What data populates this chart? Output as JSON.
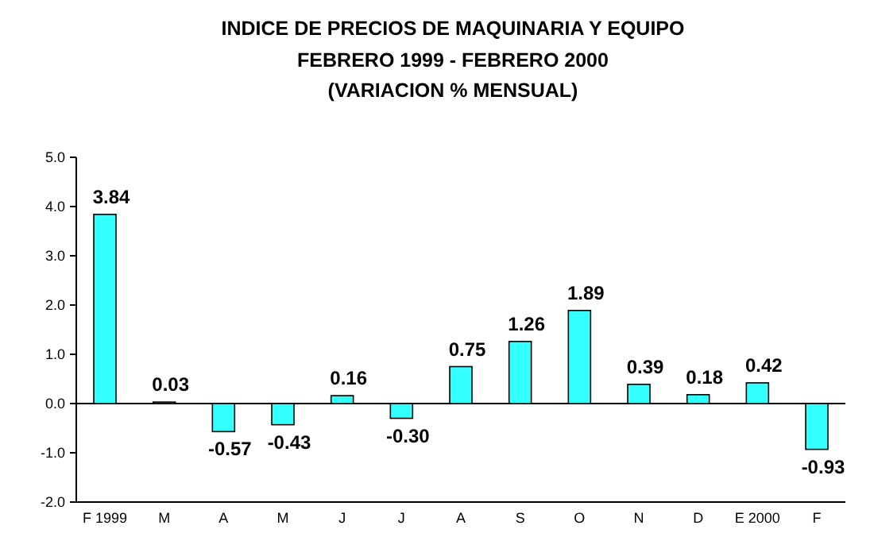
{
  "chart_data": {
    "type": "bar",
    "title": "INDICE DE PRECIOS DE MAQUINARIA Y EQUIPO",
    "subtitle": "FEBRERO 1999 - FEBRERO 2000\n(VARIACION % MENSUAL)",
    "categories": [
      "F 1999",
      "M",
      "A",
      "M",
      "J",
      "J",
      "A",
      "S",
      "O",
      "N",
      "D",
      "E 2000",
      "F"
    ],
    "values": [
      3.84,
      0.03,
      -0.57,
      -0.43,
      0.16,
      -0.3,
      0.75,
      1.26,
      1.89,
      0.39,
      0.18,
      0.42,
      -0.93
    ],
    "color": "#33ffff",
    "value_labels": [
      "3.84",
      "0.03",
      "-0.57",
      "-0.43",
      "0.16",
      "-0.30",
      "0.75",
      "1.26",
      "1.89",
      "0.39",
      "0.18",
      "0.42",
      "-0.93"
    ],
    "ylim": [
      -2,
      5
    ],
    "yticks": [
      {
        "value": -2,
        "label": "-2.0"
      },
      {
        "value": -1,
        "label": "-1.0"
      },
      {
        "value": 0,
        "label": "0.0"
      },
      {
        "value": 1,
        "label": "1.0"
      },
      {
        "value": 2,
        "label": "2.0"
      },
      {
        "value": 3,
        "label": "3.0"
      },
      {
        "value": 4,
        "label": "4.0"
      },
      {
        "value": 5,
        "label": "5.0"
      }
    ]
  }
}
